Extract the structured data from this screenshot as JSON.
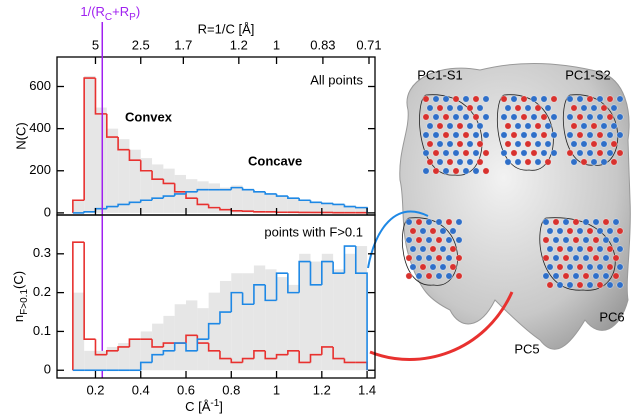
{
  "chart_data": [
    {
      "type": "histogram",
      "ylabel": "N(C)",
      "x2label": "R=1/C [Å]",
      "x2scale": "reciprocal",
      "x2ticks": [
        5,
        2.5,
        1.7,
        1.2,
        1,
        0.83,
        0.71
      ],
      "panel_label": "All points",
      "annotation": {
        "x": 0.23,
        "color": "#a020f0",
        "parts": [
          "1/(R",
          "C",
          "+R",
          "P",
          ")"
        ]
      },
      "xlim": [
        0.03,
        1.435
      ],
      "ylim": [
        -10,
        740
      ],
      "yticks": [
        0,
        200,
        400,
        600
      ],
      "bins": [
        0.1,
        0.15,
        0.2,
        0.25,
        0.3,
        0.35,
        0.4,
        0.45,
        0.5,
        0.55,
        0.6,
        0.65,
        0.7,
        0.75,
        0.8,
        0.85,
        0.9,
        0.95,
        1.0,
        1.05,
        1.1,
        1.15,
        1.2,
        1.25,
        1.3,
        1.35,
        1.4
      ],
      "series": [
        {
          "color": "#e6e6e6",
          "fill": true,
          "values": [
            60,
            650,
            500,
            400,
            350,
            300,
            260,
            230,
            210,
            180,
            160,
            150,
            140,
            120,
            130,
            110,
            100,
            90,
            80,
            70,
            60,
            50,
            45,
            40,
            35,
            30
          ]
        },
        {
          "name": "Convex",
          "color": "#e8312f",
          "values": [
            60,
            640,
            470,
            360,
            300,
            250,
            200,
            160,
            140,
            100,
            70,
            40,
            25,
            15,
            10,
            8,
            5,
            5,
            3,
            3,
            2,
            2,
            2,
            1,
            1,
            1
          ]
        },
        {
          "name": "Concave",
          "color": "#1e88e5",
          "values": [
            0,
            5,
            20,
            30,
            40,
            50,
            60,
            70,
            80,
            90,
            100,
            110,
            110,
            110,
            120,
            110,
            100,
            90,
            80,
            70,
            60,
            50,
            45,
            40,
            30,
            25
          ]
        }
      ]
    },
    {
      "type": "histogram",
      "ylabel_parts": [
        "n",
        "F>0.1",
        "(C)"
      ],
      "xlabel_parts": [
        "C [Å",
        "-1",
        "]"
      ],
      "panel_label": "points with F>0.1",
      "xlim": [
        0.03,
        1.435
      ],
      "ylim": [
        -0.02,
        0.4
      ],
      "yticks": [
        0,
        0.1,
        0.2,
        0.3
      ],
      "xticks": [
        0.2,
        0.4,
        0.6,
        0.8,
        1,
        1.2,
        1.4
      ],
      "bins": [
        0.1,
        0.15,
        0.2,
        0.25,
        0.3,
        0.35,
        0.4,
        0.45,
        0.5,
        0.55,
        0.6,
        0.65,
        0.7,
        0.75,
        0.8,
        0.85,
        0.9,
        0.95,
        1.0,
        1.05,
        1.1,
        1.15,
        1.2,
        1.25,
        1.3,
        1.35,
        1.4
      ],
      "series": [
        {
          "color": "#e6e6e6",
          "fill": true,
          "values": [
            0.2,
            0.05,
            0.05,
            0.06,
            0.07,
            0.08,
            0.1,
            0.12,
            0.14,
            0.17,
            0.18,
            0.16,
            0.2,
            0.23,
            0.25,
            0.25,
            0.27,
            0.26,
            0.24,
            0.22,
            0.3,
            0.28,
            0.3,
            0.26,
            0.3,
            0.32
          ]
        },
        {
          "color": "#e8312f",
          "values": [
            0.33,
            0.08,
            0.04,
            0.05,
            0.06,
            0.08,
            0.08,
            0.06,
            0.07,
            0.07,
            0.09,
            0.07,
            0.05,
            0.03,
            0.02,
            0.03,
            0.05,
            0.03,
            0.04,
            0.05,
            0.02,
            0.04,
            0.06,
            0.03,
            0.02,
            0.02
          ]
        },
        {
          "color": "#1e88e5",
          "values": [
            0,
            0,
            0,
            0,
            0,
            0,
            0.02,
            0.04,
            0.05,
            0.07,
            0.05,
            0.08,
            0.12,
            0.15,
            0.2,
            0.17,
            0.22,
            0.18,
            0.25,
            0.2,
            0.28,
            0.22,
            0.28,
            0.25,
            0.32,
            0.25
          ]
        }
      ]
    }
  ],
  "image_labels": [
    "PC1-S1",
    "PC1-S2",
    "PC5",
    "PC6"
  ]
}
